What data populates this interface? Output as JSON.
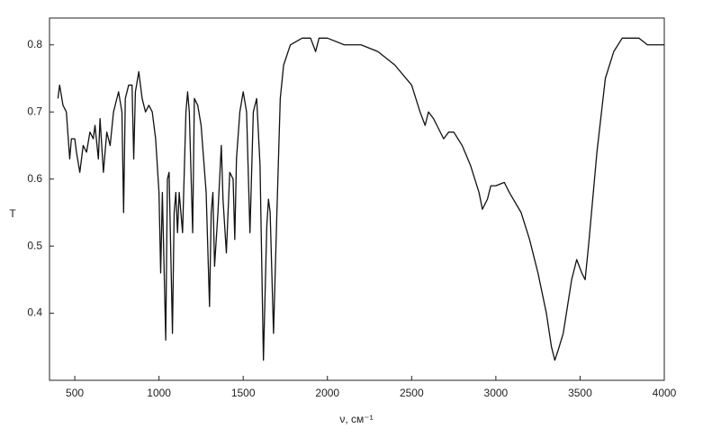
{
  "chart_data": {
    "type": "line",
    "x_label": "ν, см⁻¹",
    "y_label": "T",
    "x": [
      400,
      410,
      430,
      450,
      470,
      480,
      500,
      510,
      530,
      550,
      570,
      590,
      610,
      620,
      640,
      650,
      670,
      690,
      710,
      730,
      760,
      780,
      790,
      800,
      820,
      840,
      850,
      860,
      880,
      900,
      920,
      940,
      960,
      980,
      1000,
      1010,
      1020,
      1040,
      1050,
      1060,
      1080,
      1090,
      1100,
      1110,
      1120,
      1140,
      1160,
      1170,
      1180,
      1200,
      1210,
      1230,
      1250,
      1280,
      1300,
      1310,
      1320,
      1330,
      1350,
      1370,
      1380,
      1400,
      1420,
      1440,
      1450,
      1460,
      1480,
      1500,
      1520,
      1540,
      1560,
      1580,
      1600,
      1620,
      1640,
      1650,
      1660,
      1680,
      1700,
      1720,
      1740,
      1780,
      1850,
      1900,
      1930,
      1950,
      2000,
      2100,
      2200,
      2300,
      2400,
      2500,
      2550,
      2580,
      2600,
      2630,
      2650,
      2690,
      2720,
      2750,
      2800,
      2850,
      2900,
      2920,
      2950,
      2970,
      3000,
      3050,
      3080,
      3150,
      3200,
      3250,
      3300,
      3330,
      3350,
      3370,
      3400,
      3450,
      3480,
      3510,
      3530,
      3550,
      3600,
      3650,
      3700,
      3750,
      3800,
      3850,
      3900,
      4000
    ],
    "series": [
      {
        "name": "T",
        "color": "#111111",
        "values": [
          0.72,
          0.74,
          0.71,
          0.7,
          0.63,
          0.66,
          0.66,
          0.64,
          0.61,
          0.65,
          0.64,
          0.67,
          0.66,
          0.68,
          0.63,
          0.69,
          0.61,
          0.67,
          0.65,
          0.7,
          0.73,
          0.7,
          0.55,
          0.72,
          0.74,
          0.74,
          0.63,
          0.73,
          0.76,
          0.72,
          0.7,
          0.71,
          0.7,
          0.66,
          0.58,
          0.46,
          0.58,
          0.36,
          0.6,
          0.61,
          0.37,
          0.55,
          0.58,
          0.52,
          0.58,
          0.52,
          0.7,
          0.73,
          0.7,
          0.52,
          0.72,
          0.71,
          0.68,
          0.58,
          0.41,
          0.55,
          0.58,
          0.47,
          0.55,
          0.65,
          0.57,
          0.49,
          0.61,
          0.6,
          0.51,
          0.63,
          0.7,
          0.73,
          0.7,
          0.52,
          0.7,
          0.72,
          0.62,
          0.33,
          0.53,
          0.57,
          0.55,
          0.37,
          0.55,
          0.72,
          0.77,
          0.8,
          0.81,
          0.81,
          0.79,
          0.81,
          0.81,
          0.8,
          0.8,
          0.79,
          0.77,
          0.74,
          0.7,
          0.68,
          0.7,
          0.69,
          0.68,
          0.66,
          0.67,
          0.67,
          0.65,
          0.62,
          0.58,
          0.555,
          0.57,
          0.59,
          0.59,
          0.595,
          0.58,
          0.55,
          0.51,
          0.46,
          0.4,
          0.35,
          0.33,
          0.345,
          0.37,
          0.45,
          0.48,
          0.46,
          0.45,
          0.5,
          0.64,
          0.75,
          0.79,
          0.81,
          0.81,
          0.81,
          0.8,
          0.8
        ]
      }
    ],
    "xlim": [
      350,
      4000
    ],
    "ylim": [
      0.3,
      0.84
    ],
    "xticks": [
      500,
      1000,
      1500,
      2000,
      2500,
      3000,
      3500,
      4000
    ],
    "yticks": [
      0.4,
      0.5,
      0.6,
      0.7,
      0.8
    ]
  }
}
